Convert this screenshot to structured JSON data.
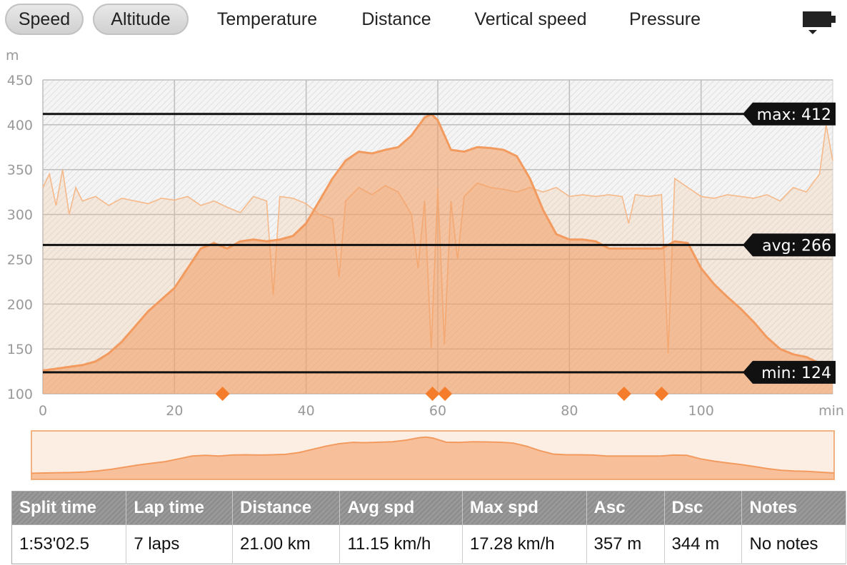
{
  "tabs": [
    {
      "label": "Speed",
      "selected": true
    },
    {
      "label": "Altitude",
      "selected": true
    },
    {
      "label": "Temperature",
      "selected": false
    },
    {
      "label": "Distance",
      "selected": false
    },
    {
      "label": "Vertical speed",
      "selected": false
    },
    {
      "label": "Pressure",
      "selected": false
    }
  ],
  "toolbar_icon": "battery-icon",
  "colors": {
    "altitude": "#f39a5e",
    "speed": "#f6b98a",
    "reference": "#111111",
    "marker": "#f57c2a"
  },
  "chart_data": {
    "type": "area",
    "xlabel": "min",
    "ylabel": "m",
    "xlim": [
      0,
      120
    ],
    "ylim": [
      100,
      450
    ],
    "x_ticks": [
      0,
      20,
      40,
      60,
      80,
      100
    ],
    "y_ticks": [
      100,
      150,
      200,
      250,
      300,
      350,
      400,
      450
    ],
    "grid": true,
    "series": [
      {
        "role": "altitude",
        "x": [
          0,
          2,
          4,
          6,
          8,
          10,
          12,
          14,
          16,
          18,
          20,
          22,
          24,
          26,
          28,
          30,
          32,
          34,
          36,
          38,
          40,
          42,
          44,
          46,
          48,
          50,
          52,
          54,
          56,
          58,
          59,
          60,
          62,
          64,
          66,
          68,
          70,
          72,
          74,
          76,
          78,
          80,
          82,
          84,
          86,
          88,
          90,
          92,
          94,
          96,
          98,
          100,
          102,
          104,
          106,
          108,
          110,
          112,
          114,
          116,
          118,
          120
        ],
        "values": [
          126,
          128,
          130,
          132,
          136,
          145,
          158,
          175,
          192,
          205,
          218,
          240,
          262,
          268,
          262,
          270,
          272,
          270,
          272,
          276,
          290,
          315,
          340,
          360,
          370,
          368,
          372,
          375,
          388,
          408,
          412,
          405,
          372,
          370,
          375,
          374,
          372,
          365,
          340,
          305,
          278,
          272,
          272,
          270,
          262,
          262,
          262,
          262,
          262,
          270,
          268,
          240,
          222,
          208,
          195,
          180,
          163,
          150,
          144,
          141,
          134,
          128
        ]
      },
      {
        "role": "speed",
        "note": "noisy speed trace on shared axis",
        "x": [
          0,
          1,
          2,
          3,
          4,
          5,
          6,
          8,
          10,
          12,
          14,
          16,
          18,
          20,
          22,
          24,
          26,
          28,
          30,
          32,
          34,
          35,
          36,
          38,
          40,
          42,
          44,
          45,
          46,
          48,
          50,
          52,
          54,
          56,
          57,
          58,
          59,
          60,
          61,
          62,
          63,
          64,
          66,
          68,
          70,
          72,
          74,
          76,
          78,
          80,
          82,
          84,
          86,
          88,
          89,
          90,
          92,
          94,
          95,
          96,
          98,
          100,
          102,
          104,
          106,
          108,
          110,
          112,
          114,
          116,
          118,
          119,
          120
        ],
        "values": [
          330,
          345,
          310,
          350,
          300,
          330,
          315,
          320,
          310,
          318,
          315,
          312,
          318,
          316,
          320,
          310,
          315,
          308,
          302,
          320,
          315,
          210,
          320,
          318,
          312,
          300,
          295,
          230,
          315,
          330,
          322,
          332,
          325,
          300,
          240,
          315,
          150,
          330,
          155,
          315,
          250,
          320,
          335,
          330,
          328,
          325,
          330,
          325,
          330,
          320,
          322,
          320,
          322,
          320,
          290,
          322,
          320,
          322,
          145,
          340,
          330,
          320,
          318,
          322,
          320,
          318,
          322,
          315,
          330,
          325,
          345,
          400,
          360
        ]
      }
    ],
    "annotations": [
      {
        "label": "max: 412",
        "value": 412
      },
      {
        "label": "avg: 266",
        "value": 266
      },
      {
        "label": "min: 124",
        "value": 124
      }
    ],
    "lap_markers": [
      27.3,
      59.2,
      61.1,
      88.3,
      94.0
    ],
    "overview": {
      "type": "area",
      "note": "minimap of full altitude range"
    }
  },
  "table": {
    "headers": [
      "Split time",
      "Lap time",
      "Distance",
      "Avg spd",
      "Max spd",
      "Asc",
      "Dsc",
      "Notes"
    ],
    "row": [
      "1:53'02.5",
      "7 laps",
      "21.00 km",
      "11.15 km/h",
      "17.28 km/h",
      "357 m",
      "344 m",
      "No notes"
    ]
  }
}
